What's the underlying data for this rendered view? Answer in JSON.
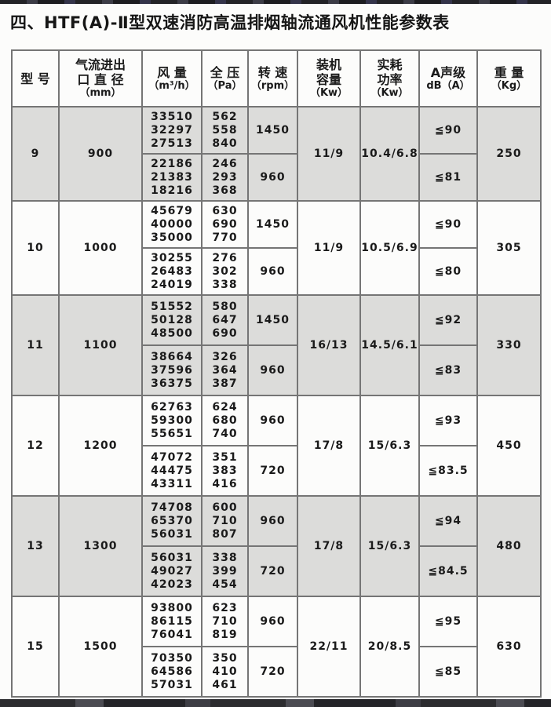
{
  "page": {
    "title": "四、HTF(A)-Ⅱ型双速消防高温排烟轴流通风机性能参数表"
  },
  "colors": {
    "row_shaded": "#dcdcda",
    "grid_line": "#757575",
    "text": "#1a1a1a",
    "page_bg": "#fcfcfb",
    "scan_edge": "#2c2c2f"
  },
  "table": {
    "headers": [
      {
        "id": "model",
        "lines": [
          "型 号"
        ]
      },
      {
        "id": "diameter",
        "lines": [
          "气流进出",
          "口 直 径",
          "（mm）"
        ]
      },
      {
        "id": "airflow",
        "lines": [
          "风 量",
          "（m³/h）"
        ]
      },
      {
        "id": "pressure",
        "lines": [
          "全 压",
          "（Pa）"
        ]
      },
      {
        "id": "speed",
        "lines": [
          "转 速",
          "（rpm）"
        ]
      },
      {
        "id": "capacity",
        "lines": [
          "装机",
          "容量",
          "（Kw）"
        ]
      },
      {
        "id": "power",
        "lines": [
          "实耗",
          "功率",
          "（Kw）"
        ]
      },
      {
        "id": "noise",
        "lines": [
          "A声级",
          "dB（A）"
        ]
      },
      {
        "id": "weight",
        "lines": [
          "重 量",
          "（Kg）"
        ]
      }
    ],
    "rows": [
      {
        "model": "9",
        "diameter": "900",
        "capacity": "11/9",
        "power": "10.4/6.8",
        "weight": "250",
        "speeds": [
          {
            "airflow": [
              "33510",
              "32297",
              "27513"
            ],
            "pressure": [
              "562",
              "558",
              "840"
            ],
            "rpm": "1450",
            "noise": "≦90"
          },
          {
            "airflow": [
              "22186",
              "21383",
              "18216"
            ],
            "pressure": [
              "246",
              "293",
              "368"
            ],
            "rpm": "960",
            "noise": "≦81"
          }
        ]
      },
      {
        "model": "10",
        "diameter": "1000",
        "capacity": "11/9",
        "power": "10.5/6.9",
        "weight": "305",
        "speeds": [
          {
            "airflow": [
              "45679",
              "40000",
              "35000"
            ],
            "pressure": [
              "630",
              "690",
              "770"
            ],
            "rpm": "1450",
            "noise": "≦90"
          },
          {
            "airflow": [
              "30255",
              "26483",
              "24019"
            ],
            "pressure": [
              "276",
              "302",
              "338"
            ],
            "rpm": "960",
            "noise": "≦80"
          }
        ]
      },
      {
        "model": "11",
        "diameter": "1100",
        "capacity": "16/13",
        "power": "14.5/6.1",
        "weight": "330",
        "speeds": [
          {
            "airflow": [
              "51552",
              "50128",
              "48500"
            ],
            "pressure": [
              "580",
              "647",
              "690"
            ],
            "rpm": "1450",
            "noise": "≦92"
          },
          {
            "airflow": [
              "38664",
              "37596",
              "36375"
            ],
            "pressure": [
              "326",
              "364",
              "387"
            ],
            "rpm": "960",
            "noise": "≦83"
          }
        ]
      },
      {
        "model": "12",
        "diameter": "1200",
        "capacity": "17/8",
        "power": "15/6.3",
        "weight": "450",
        "speeds": [
          {
            "airflow": [
              "62763",
              "59300",
              "55651"
            ],
            "pressure": [
              "624",
              "680",
              "740"
            ],
            "rpm": "960",
            "noise": "≦93"
          },
          {
            "airflow": [
              "47072",
              "44475",
              "43311"
            ],
            "pressure": [
              "351",
              "383",
              "416"
            ],
            "rpm": "720",
            "noise": "≦83.5"
          }
        ]
      },
      {
        "model": "13",
        "diameter": "1300",
        "capacity": "17/8",
        "power": "15/6.3",
        "weight": "480",
        "speeds": [
          {
            "airflow": [
              "74708",
              "65370",
              "56031"
            ],
            "pressure": [
              "600",
              "710",
              "807"
            ],
            "rpm": "960",
            "noise": "≦94"
          },
          {
            "airflow": [
              "56031",
              "49027",
              "42023"
            ],
            "pressure": [
              "338",
              "399",
              "454"
            ],
            "rpm": "720",
            "noise": "≦84.5"
          }
        ]
      },
      {
        "model": "15",
        "diameter": "1500",
        "capacity": "22/11",
        "power": "20/8.5",
        "weight": "630",
        "speeds": [
          {
            "airflow": [
              "93800",
              "86115",
              "76041"
            ],
            "pressure": [
              "623",
              "710",
              "819"
            ],
            "rpm": "960",
            "noise": "≦95"
          },
          {
            "airflow": [
              "70350",
              "64586",
              "57031"
            ],
            "pressure": [
              "350",
              "410",
              "461"
            ],
            "rpm": "720",
            "noise": "≦85"
          }
        ]
      }
    ]
  }
}
